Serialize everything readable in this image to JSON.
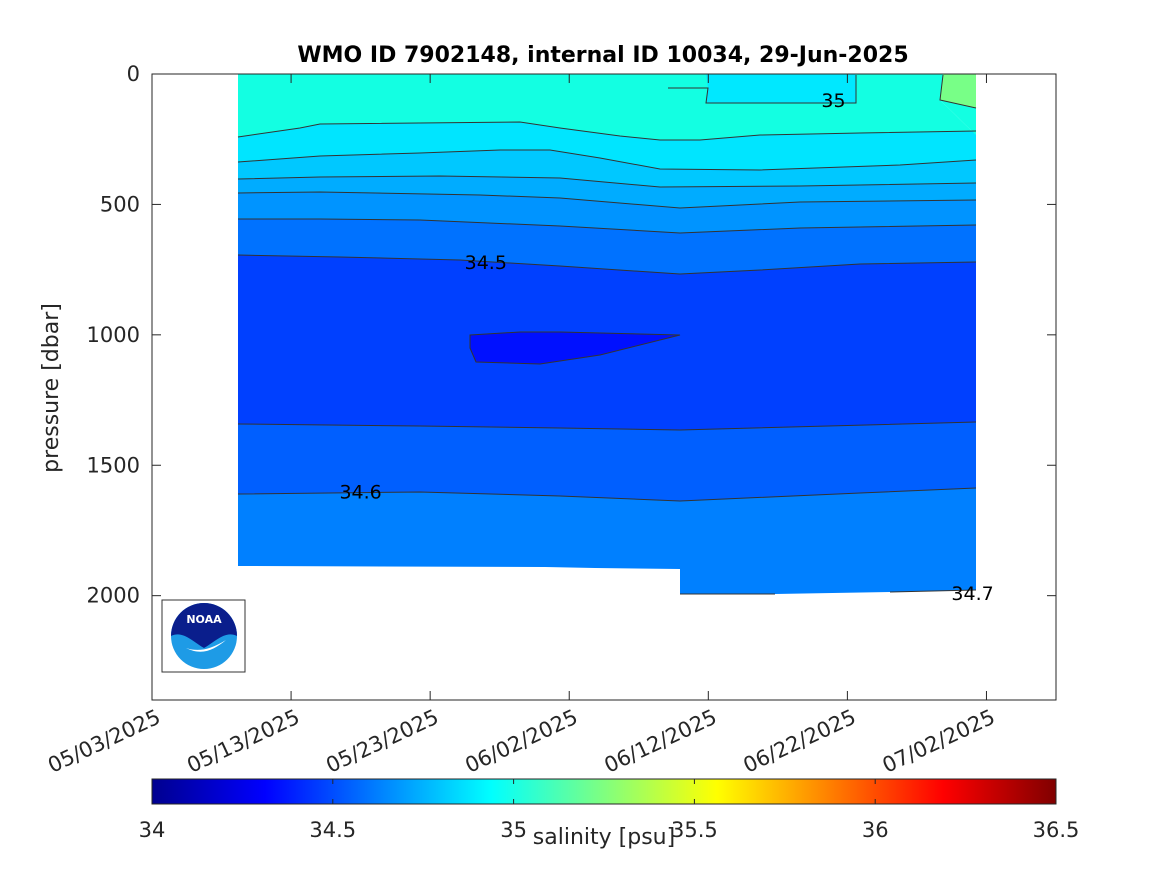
{
  "chart_data": {
    "type": "heatmap",
    "title": "WMO ID 7902148, internal ID 10034, 29-Jun-2025",
    "xlabel": "",
    "ylabel": "pressure [dbar]",
    "y_reversed": true,
    "ylim": [
      0,
      2400
    ],
    "xlim": [
      "05/03/2025",
      "07/07/2025"
    ],
    "x_ticks": [
      "05/03/2025",
      "05/13/2025",
      "05/23/2025",
      "06/02/2025",
      "06/12/2025",
      "06/22/2025",
      "07/02/2025"
    ],
    "y_ticks": [
      "0",
      "500",
      "1000",
      "1500",
      "2000"
    ],
    "grid": false,
    "colormap": "jet",
    "colorbar": {
      "label": "salinity [psu]",
      "range": [
        34,
        36.5
      ],
      "ticks": [
        "34",
        "34.5",
        "35",
        "35.5",
        "36",
        "36.5"
      ]
    },
    "contour_labels": [
      {
        "text": "35",
        "date": "06/21/2025",
        "pressure": 100
      },
      {
        "text": "34.5",
        "date": "05/27/2025",
        "pressure": 720
      },
      {
        "text": "34.6",
        "date": "05/18/2025",
        "pressure": 1600
      },
      {
        "text": "34.7",
        "date": "07/01/2025",
        "pressure": 1990
      }
    ],
    "data_range": {
      "start": "05/09/2025",
      "end": "07/04/2025"
    },
    "bands": [
      {
        "salinity_range": "34.9-35.0",
        "color": "#13FFE2",
        "from_pressure": 0,
        "to_pressure": 240
      },
      {
        "salinity_range": "34.8-34.9",
        "color": "#00E5FF",
        "from_pressure": 240,
        "to_pressure": 330
      },
      {
        "salinity_range": "34.75-34.8",
        "color": "#00C8FF",
        "from_pressure": 330,
        "to_pressure": 400
      },
      {
        "salinity_range": "34.7-34.75",
        "color": "#00ACFF",
        "from_pressure": 400,
        "to_pressure": 480
      },
      {
        "salinity_range": "34.65-34.7",
        "color": "#0094FF",
        "from_pressure": 480,
        "to_pressure": 570
      },
      {
        "salinity_range": "34.6-34.65",
        "color": "#0072FF",
        "from_pressure": 570,
        "to_pressure": 700
      },
      {
        "salinity_range": "34.5-34.6",
        "color": "#0040FF",
        "from_pressure": 700,
        "to_pressure": 1350
      },
      {
        "salinity_range": "34.6-34.65",
        "color": "#005FFF",
        "from_pressure": 1350,
        "to_pressure": 1620
      },
      {
        "salinity_range": "34.65-34.7",
        "color": "#0080FF",
        "from_pressure": 1620,
        "to_pressure": 1990
      }
    ]
  },
  "logo": {
    "text": "NOAA",
    "color_top": "#0A1E8C",
    "color_bottom": "#1E9BE6"
  }
}
